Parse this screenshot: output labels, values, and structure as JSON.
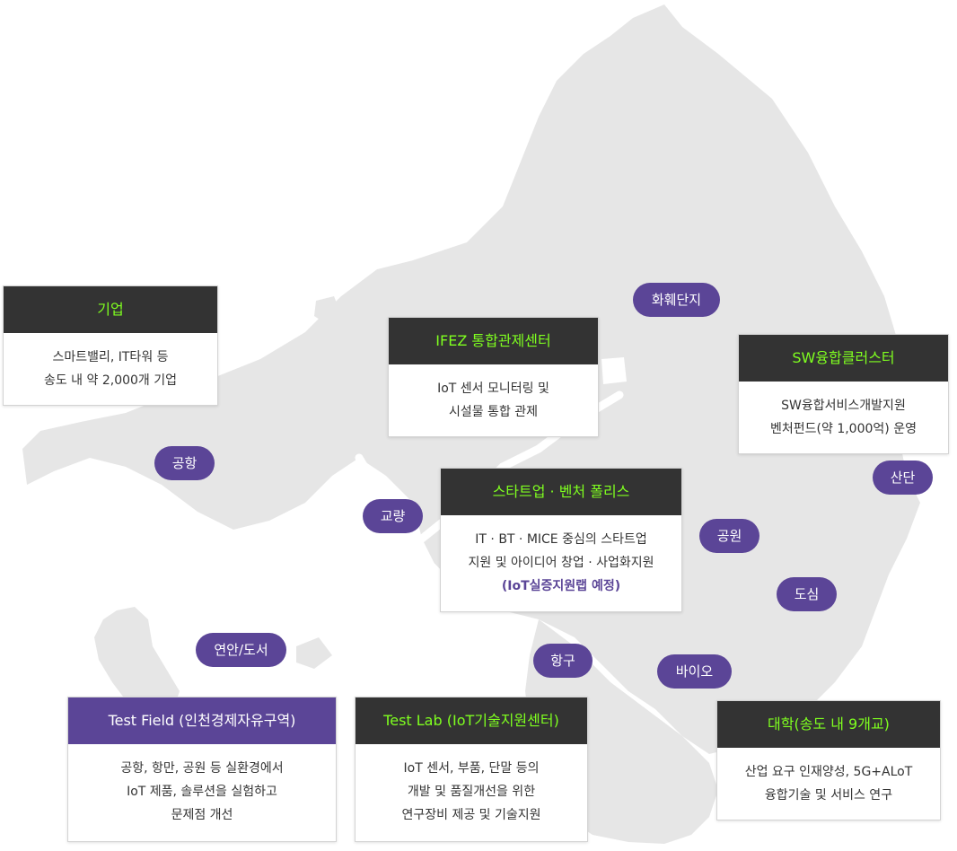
{
  "colors": {
    "accent": "#5b4597",
    "header_dark": "#333333",
    "header_title_green": "#7fff1f",
    "map_land": "#e6e6e6"
  },
  "map": {
    "icon": "songdo-map"
  },
  "pills": {
    "hwahwe": "화훼단지",
    "airport": "공항",
    "bridge": "교량",
    "park": "공원",
    "industrial": "산단",
    "urban": "도심",
    "coastal": "연안/도서",
    "port": "항구",
    "bio": "바이오"
  },
  "cards": {
    "company": {
      "title": "기업",
      "lines": [
        "스마트밸리, IT타워 등",
        "송도 내 약 2,000개 기업"
      ]
    },
    "ifez": {
      "title": "IFEZ 통합관제센터",
      "lines": [
        "IoT 센서 모니터링 및",
        "시설물 통합 관제"
      ]
    },
    "sw": {
      "title": "SW융합클러스터",
      "lines": [
        "SW융합서비스개발지원",
        "벤처펀드(약 1,000억) 운영"
      ]
    },
    "startup": {
      "title": "스타트업 · 벤처 폴리스",
      "lines": [
        "IT · BT · MICE 중심의 스타트업",
        "지원 및 아이디어 창업 · 사업화지원"
      ],
      "highlight": "(IoT실증지원랩 예정)"
    },
    "testfield": {
      "title": "Test Field (인천경제자유구역)",
      "lines": [
        "공항, 항만, 공원 등 실환경에서",
        "IoT 제품, 솔루션을 실험하고",
        "문제점 개선"
      ]
    },
    "testlab": {
      "title": "Test Lab (IoT기술지원센터)",
      "lines": [
        "IoT 센서, 부품, 단말 등의",
        "개발 및 품질개선을 위한",
        "연구장비 제공 및 기술지원"
      ]
    },
    "univ": {
      "title": "대학(송도 내 9개교)",
      "lines": [
        "산업 요구 인재양성, 5G+ALoT",
        "융합기술 및 서비스 연구"
      ]
    }
  }
}
